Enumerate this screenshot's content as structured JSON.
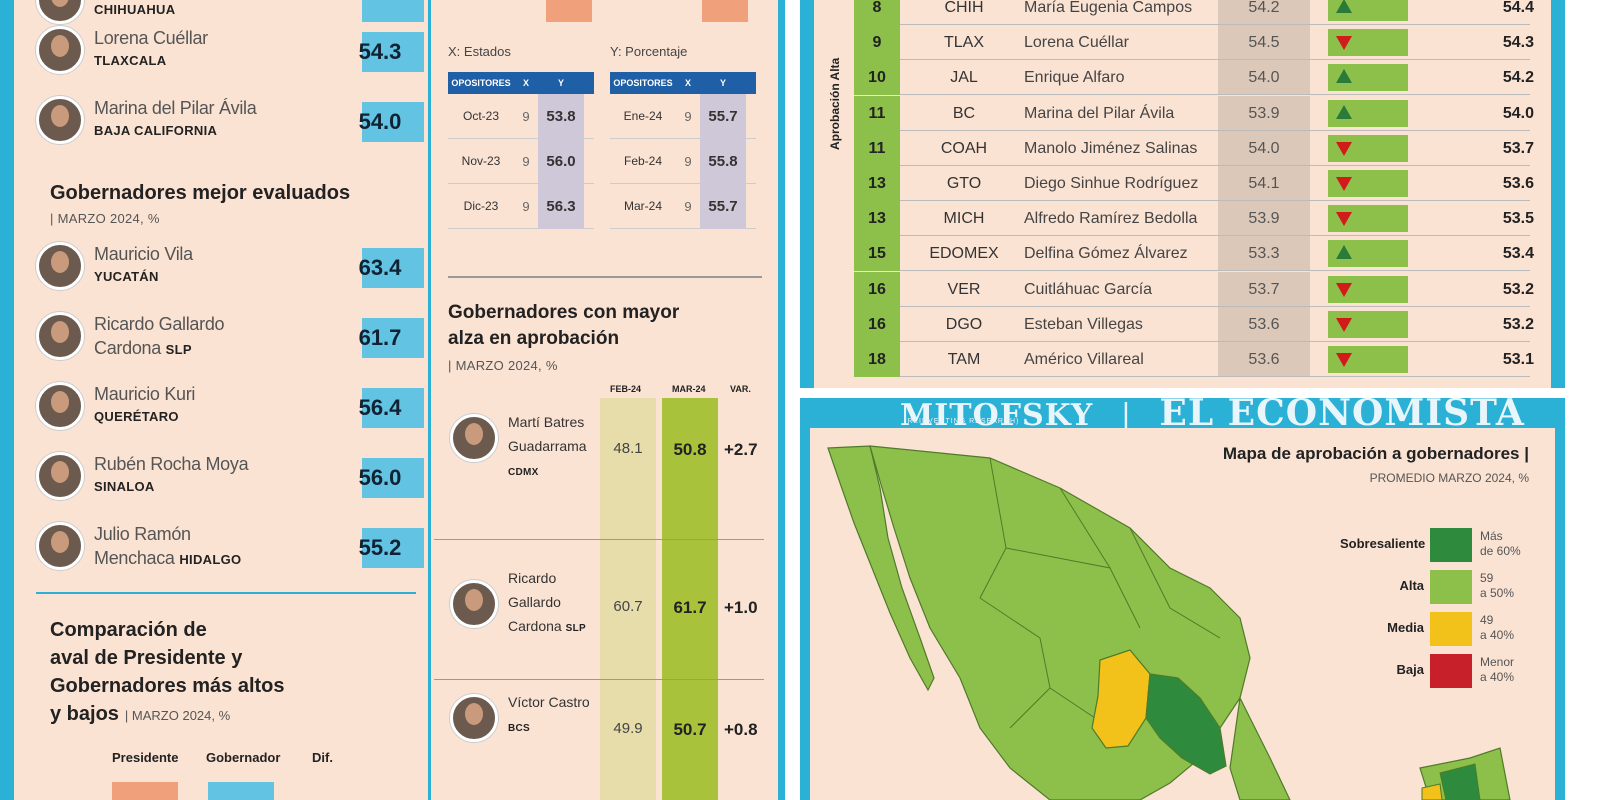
{
  "panel_left": {
    "top_state": "CHIHUAHUA",
    "top_list": [
      {
        "name_lines": [
          "Lorena Cuéllar"
        ],
        "state": "TLAXCALA",
        "score": "54.3"
      },
      {
        "name_lines": [
          "Marina del Pilar Ávila"
        ],
        "state": "BAJA CALIFORNIA",
        "score": "54.0"
      }
    ],
    "best_title": "Gobernadores mejor evaluados",
    "best_subtitle": "| MARZO 2024, %",
    "best_list": [
      {
        "name_lines": [
          "Mauricio Vila"
        ],
        "state": "YUCATÁN",
        "score": "63.4"
      },
      {
        "name_lines": [
          "Ricardo Gallardo",
          "Cardona"
        ],
        "state": "SLP",
        "score": "61.7"
      },
      {
        "name_lines": [
          "Mauricio Kuri"
        ],
        "state": "QUERÉTARO",
        "score": "56.4"
      },
      {
        "name_lines": [
          "Rubén Rocha Moya"
        ],
        "state": "SINALOA",
        "score": "56.0"
      },
      {
        "name_lines": [
          "Julio Ramón",
          "Menchaca"
        ],
        "state": "HIDALGO",
        "score": "55.2"
      }
    ],
    "compare_title_lines": [
      "Comparación de",
      "aval de Presidente y",
      "Gobernadores más altos",
      "y bajos"
    ],
    "compare_subtitle": "MARZO 2024, %",
    "compare_cols": [
      "Presidente",
      "Gobernador",
      "Dif."
    ]
  },
  "panel_middle": {
    "x_label": "X: Estados",
    "y_label": "Y: Porcentaje",
    "table_heads": [
      "OPOSITORES",
      "X",
      "Y"
    ],
    "table_left": [
      {
        "date": "Oct-23",
        "x": "9",
        "y": "53.8"
      },
      {
        "date": "Nov-23",
        "x": "9",
        "y": "56.0"
      },
      {
        "date": "Dic-23",
        "x": "9",
        "y": "56.3"
      }
    ],
    "table_right": [
      {
        "date": "Ene-24",
        "x": "9",
        "y": "55.7"
      },
      {
        "date": "Feb-24",
        "x": "9",
        "y": "55.8"
      },
      {
        "date": "Mar-24",
        "x": "9",
        "y": "55.7"
      }
    ],
    "rise_title_lines": [
      "Gobernadores con mayor",
      "alza en aprobación"
    ],
    "rise_subtitle": "| MARZO 2024, %",
    "rise_cols": [
      "FEB-24",
      "MAR-24",
      "VAR."
    ],
    "rise_rows": [
      {
        "name_lines": [
          "Martí Batres",
          "Guadarrama"
        ],
        "state": "CDMX",
        "feb": "48.1",
        "mar": "50.8",
        "var": "+2.7"
      },
      {
        "name_lines": [
          "Ricardo",
          "Gallardo",
          "Cardona"
        ],
        "state": "SLP",
        "feb": "60.7",
        "mar": "61.7",
        "var": "+1.0"
      },
      {
        "name_lines": [
          "Víctor Castro"
        ],
        "state": "BCS",
        "feb": "49.9",
        "mar": "50.7",
        "var": "+0.8"
      }
    ]
  },
  "panel_ranking": {
    "side_label": "Aprobación Alta",
    "rows": [
      {
        "rank": "8",
        "state": "CHIH",
        "name": "María Eugenia Campos",
        "prev": "54.2",
        "trend": "up",
        "now": "54.4"
      },
      {
        "rank": "9",
        "state": "TLAX",
        "name": "Lorena Cuéllar",
        "prev": "54.5",
        "trend": "down",
        "now": "54.3"
      },
      {
        "rank": "10",
        "state": "JAL",
        "name": "Enrique Alfaro",
        "prev": "54.0",
        "trend": "up",
        "now": "54.2"
      },
      {
        "rank": "11",
        "state": "BC",
        "name": "Marina del Pilar Ávila",
        "prev": "53.9",
        "trend": "up",
        "now": "54.0"
      },
      {
        "rank": "11",
        "state": "COAH",
        "name": "Manolo Jiménez Salinas",
        "prev": "54.0",
        "trend": "down",
        "now": "53.7"
      },
      {
        "rank": "13",
        "state": "GTO",
        "name": "Diego Sinhue Rodríguez",
        "prev": "54.1",
        "trend": "down",
        "now": "53.6"
      },
      {
        "rank": "13",
        "state": "MICH",
        "name": "Alfredo Ramírez Bedolla",
        "prev": "53.9",
        "trend": "down",
        "now": "53.5"
      },
      {
        "rank": "15",
        "state": "EDOMEX",
        "name": "Delfina Gómez Álvarez",
        "prev": "53.3",
        "trend": "up",
        "now": "53.4"
      },
      {
        "rank": "16",
        "state": "VER",
        "name": "Cuitláhuac García",
        "prev": "53.7",
        "trend": "down",
        "now": "53.2"
      },
      {
        "rank": "16",
        "state": "DGO",
        "name": "Esteban Villegas",
        "prev": "53.6",
        "trend": "down",
        "now": "53.2"
      },
      {
        "rank": "18",
        "state": "TAM",
        "name": "Américo Villareal",
        "prev": "53.6",
        "trend": "down",
        "now": "53.1"
      }
    ]
  },
  "panel_map": {
    "brand_left": "MITOFSKY",
    "brand_left_sub": "(REINVENTING RESEARCH)",
    "brand_right": "EL ECONOMISTA",
    "title": "Mapa de aprobación a gobernadores |",
    "subtitle": "PROMEDIO MARZO 2024, %",
    "legend": [
      {
        "label": "Sobresaliente",
        "text_lines": [
          "Más",
          "de 60%"
        ],
        "color": "#2e8b3e"
      },
      {
        "label": "Alta",
        "text_lines": [
          "59",
          "a 50%"
        ],
        "color": "#8dc04a"
      },
      {
        "label": "Media",
        "text_lines": [
          "49",
          "a 40%"
        ],
        "color": "#f2c21b"
      },
      {
        "label": "Baja",
        "text_lines": [
          "Menor",
          "a 40%"
        ],
        "color": "#c8202a"
      }
    ]
  }
}
